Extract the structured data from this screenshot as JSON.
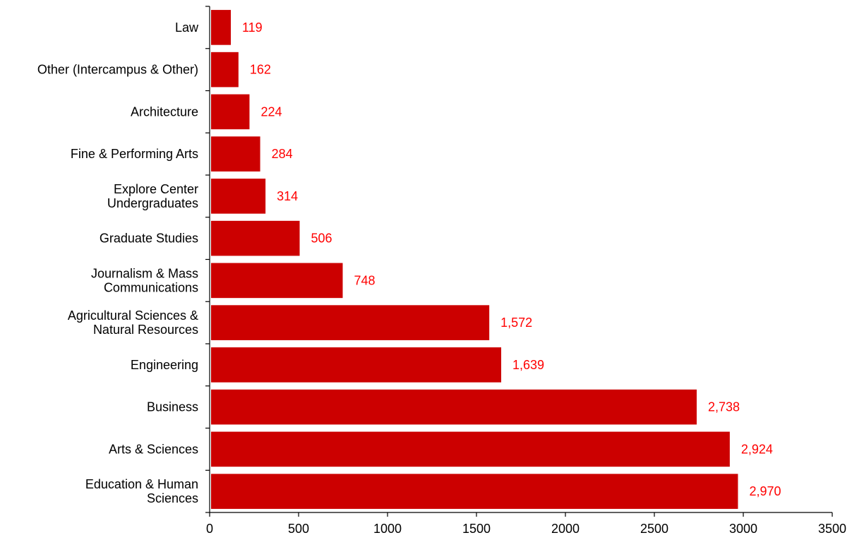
{
  "chart_data": {
    "type": "bar",
    "orientation": "horizontal",
    "categories": [
      [
        "Law"
      ],
      [
        "Other (Intercampus & Other)"
      ],
      [
        "Architecture"
      ],
      [
        "Fine & Performing Arts"
      ],
      [
        "Explore Center",
        "Undergraduates"
      ],
      [
        "Graduate Studies"
      ],
      [
        "Journalism & Mass",
        "Communications"
      ],
      [
        "Agricultural Sciences &",
        "Natural Resources"
      ],
      [
        "Engineering"
      ],
      [
        "Business"
      ],
      [
        "Arts & Sciences"
      ],
      [
        "Education & Human",
        "Sciences"
      ]
    ],
    "values": [
      119,
      162,
      224,
      284,
      314,
      506,
      748,
      1572,
      1639,
      2738,
      2924,
      2970
    ],
    "data_labels": [
      "119",
      "162",
      "224",
      "284",
      "314",
      "506",
      "748",
      "1,572",
      "1,639",
      "2,738",
      "2,924",
      "2,970"
    ],
    "xlim": [
      0,
      3500
    ],
    "x_ticks": [
      "0",
      "500",
      "1000",
      "1500",
      "2000",
      "2500",
      "3000",
      "3500"
    ],
    "title": "",
    "xlabel": "",
    "ylabel": "",
    "grid": false,
    "legend": "none",
    "colors": {
      "bar": "#cc0000",
      "data_label": "#ff0000",
      "axis": "#000000",
      "text": "#000000"
    }
  }
}
